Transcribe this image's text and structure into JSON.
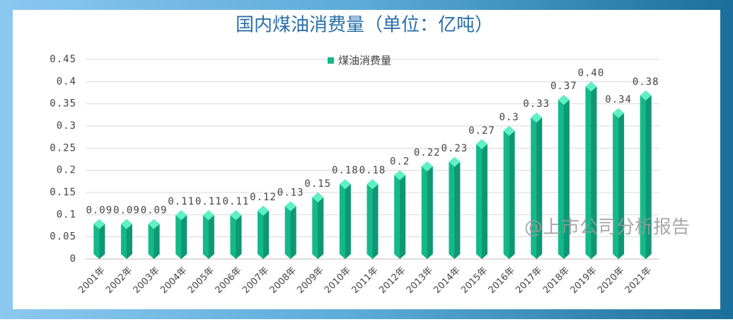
{
  "chart_data": {
    "type": "bar",
    "title": "国内煤油消费量（单位：亿吨）",
    "categories": [
      "2001年",
      "2002年",
      "2003年",
      "2004年",
      "2005年",
      "2006年",
      "2007年",
      "2008年",
      "2009年",
      "2010年",
      "2011年",
      "2012年",
      "2013年",
      "2014年",
      "2015年",
      "2016年",
      "2017年",
      "2018年",
      "2019年",
      "2020年",
      "2021年"
    ],
    "series": [
      {
        "name": "煤油消费量",
        "color": "#14b98a",
        "values": [
          0.09,
          0.09,
          0.09,
          0.11,
          0.11,
          0.11,
          0.12,
          0.13,
          0.15,
          0.18,
          0.18,
          0.2,
          0.22,
          0.23,
          0.27,
          0.3,
          0.33,
          0.37,
          0.4,
          0.34,
          0.38
        ],
        "value_labels": [
          "0.09",
          "0.09",
          "0.09",
          "0.11",
          "0.11",
          "0.11",
          "0.12",
          "0.13",
          "0.15",
          "0.18",
          "0.18",
          "0.2",
          "0.22",
          "0.23",
          "0.27",
          "0.3",
          "0.33",
          "0.37",
          "0.40",
          "0.34",
          "0.38"
        ]
      }
    ],
    "ylim": [
      0,
      0.45
    ],
    "yticks": [
      0,
      0.05,
      0.1,
      0.15,
      0.2,
      0.25,
      0.3,
      0.35,
      0.4,
      0.45
    ],
    "grid": true,
    "legend": "top",
    "watermark": "@上市公司分析报告"
  }
}
